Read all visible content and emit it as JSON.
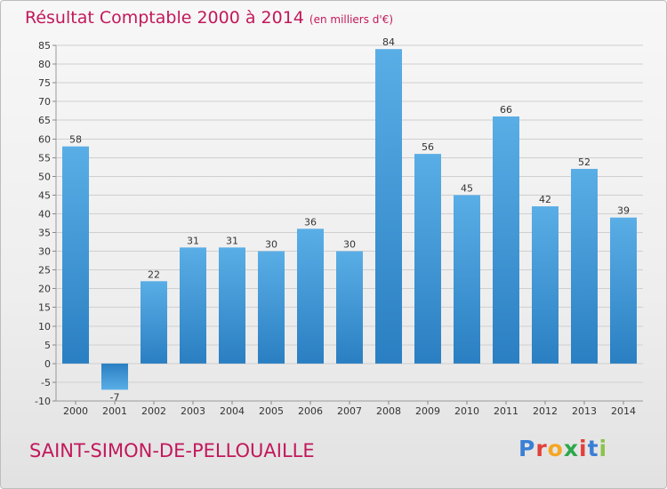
{
  "header": {
    "title": "Résultat Comptable 2000 à 2014",
    "subtitle": "(en milliers d'€)"
  },
  "footer": {
    "location": "SAINT-SIMON-DE-PELLOUAILLE",
    "logo": "Proxiti"
  },
  "colors": {
    "bar_light": "#5aaee6",
    "bar_dark": "#2a7fc2",
    "title": "#c2185b",
    "logo": [
      "#3a7fd5",
      "#e2403a",
      "#f5a623",
      "#2ca84a",
      "#e2403a",
      "#3a7fd5",
      "#8bc34a"
    ]
  },
  "chart_data": {
    "type": "bar",
    "title": "Résultat Comptable 2000 à 2014",
    "xlabel": "",
    "ylabel": "",
    "categories": [
      "2000",
      "2001",
      "2002",
      "2003",
      "2004",
      "2005",
      "2006",
      "2007",
      "2008",
      "2009",
      "2010",
      "2011",
      "2012",
      "2013",
      "2014"
    ],
    "values": [
      58,
      -7,
      22,
      31,
      31,
      30,
      36,
      30,
      84,
      56,
      45,
      66,
      42,
      52,
      39
    ],
    "ylim": [
      -10,
      85
    ],
    "yticks": [
      -10,
      -5,
      0,
      5,
      10,
      15,
      20,
      25,
      30,
      35,
      40,
      45,
      50,
      55,
      60,
      65,
      70,
      75,
      80,
      85
    ],
    "grid": true
  }
}
